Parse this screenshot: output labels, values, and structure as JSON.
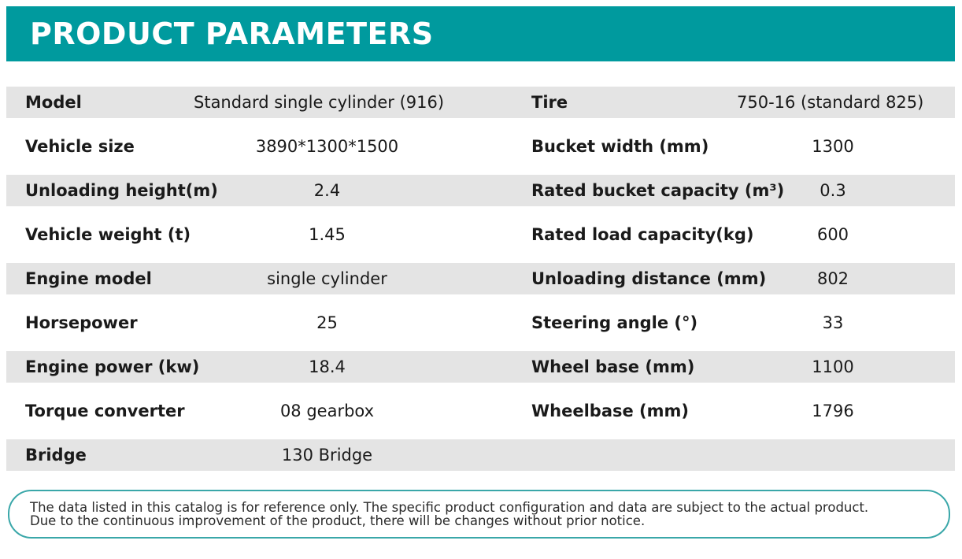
{
  "header": {
    "title": "PRODUCT PARAMETERS"
  },
  "params": [
    {
      "label": "Model",
      "value": "Standard single cylinder (916)",
      "label2": "Tire",
      "value2": "750-16 (standard 825)"
    },
    {
      "label": "Vehicle size",
      "value": "3890*1300*1500",
      "label2": "Bucket width (mm)",
      "value2": "1300"
    },
    {
      "label": "Unloading height(m)",
      "value": "2.4",
      "label2": "Rated bucket capacity (m³)",
      "value2": "0.3"
    },
    {
      "label": "Vehicle weight (t)",
      "value": "1.45",
      "label2": "Rated load capacity(kg)",
      "value2": "600"
    },
    {
      "label": "Engine model",
      "value": "single cylinder",
      "label2": "Unloading distance (mm)",
      "value2": "802"
    },
    {
      "label": "Horsepower",
      "value": "25",
      "label2": "Steering angle (°)",
      "value2": "33"
    },
    {
      "label": "Engine power (kw)",
      "value": "18.4",
      "label2": "Wheel base (mm)",
      "value2": "1100"
    },
    {
      "label": "Torque converter",
      "value": "08 gearbox",
      "label2": "Wheelbase (mm)",
      "value2": "1796"
    },
    {
      "label": "Bridge",
      "value": "130 Bridge",
      "label2": "",
      "value2": ""
    }
  ],
  "disclaimer": {
    "line1": "The data listed in this catalog is for reference only. The specific product configuration and data are subject to the actual product.",
    "line2": "Due to the continuous improvement of the product, there will be changes without prior notice."
  },
  "colors": {
    "accent": "#009a9e",
    "row_shade": "#e4e4e4",
    "border": "#3aa7a9"
  }
}
